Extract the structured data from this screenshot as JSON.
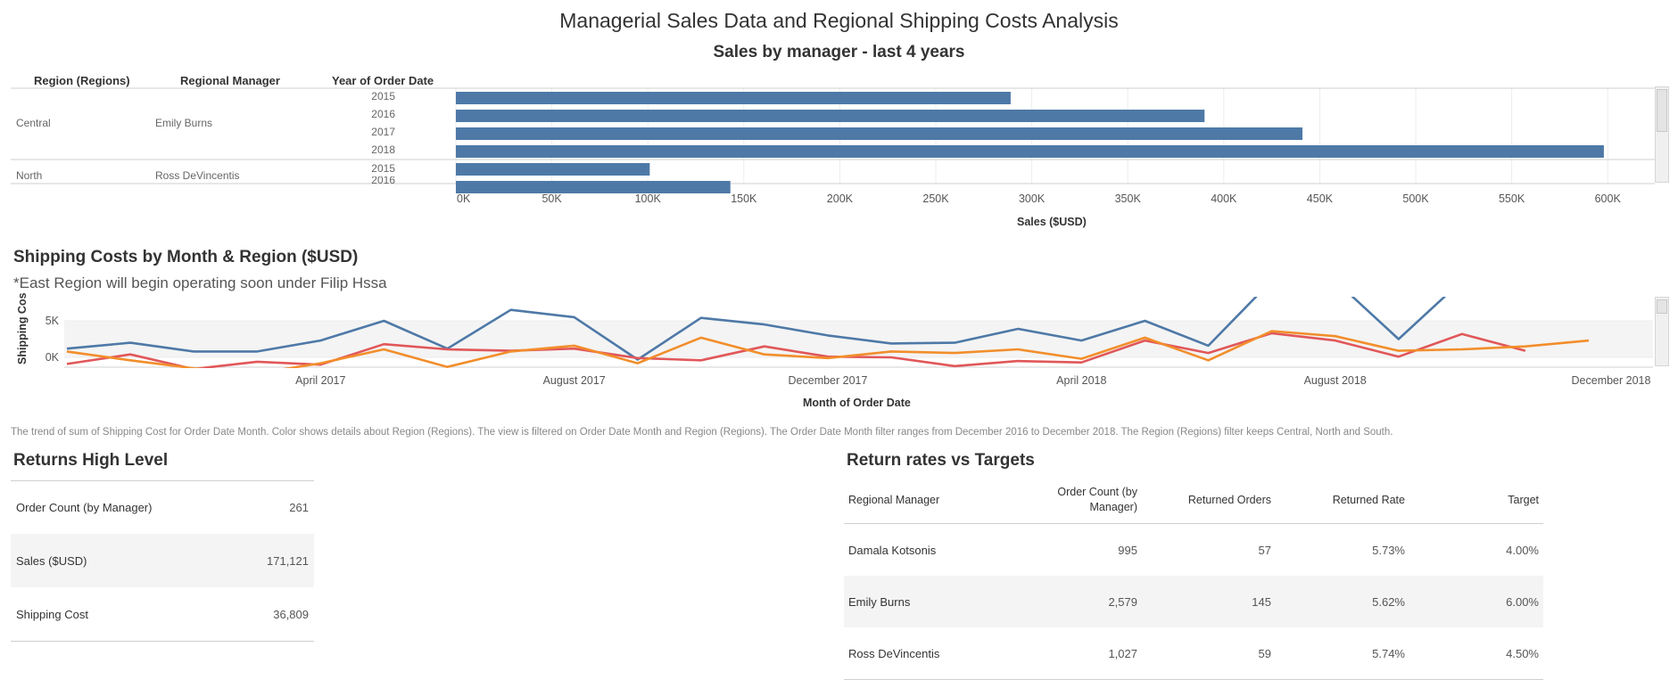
{
  "dashboard_title": "Managerial Sales Data and Regional Shipping Costs Analysis",
  "colors": {
    "bar": "#4e79a7",
    "central": "#4e79a7",
    "north": "#e15759",
    "south": "#f28e2b",
    "grid": "#ececec",
    "band": "#f4f4f4"
  },
  "bar_chart": {
    "headers": {
      "region": "Region (Regions)",
      "manager": "Regional Manager",
      "year": "Year of Order Date"
    },
    "groups": [
      {
        "region": "Central",
        "manager": "Emily Burns",
        "years": [
          "2015",
          "2016",
          "2017",
          "2018"
        ]
      },
      {
        "region": "North",
        "manager": "Ross DeVincentis",
        "years": [
          "2015",
          "2016"
        ]
      }
    ],
    "x_ticks": [
      "0K",
      "50K",
      "100K",
      "150K",
      "200K",
      "250K",
      "300K",
      "350K",
      "400K",
      "450K",
      "500K",
      "550K",
      "600K"
    ]
  },
  "line_chart": {
    "title": "Shipping Costs by Month & Region ($USD)",
    "note": "*East Region will begin operating soon under Filip Hssa",
    "ylabel": "Shipping Cos",
    "xlabel": "Month of Order Date",
    "y_ticks": [
      "5K",
      "0K"
    ],
    "x_ticks": [
      "April 2017",
      "August 2017",
      "December 2017",
      "April 2018",
      "August 2018",
      "December 2018"
    ],
    "caption": "The trend of sum of Shipping Cost for Order Date Month.  Color shows details about Region (Regions). The view is filtered on Order Date Month and Region (Regions). The Order Date Month filter ranges from December 2016 to December 2018. The Region (Regions) filter keeps Central, North and South."
  },
  "chart_data": [
    {
      "type": "bar",
      "title": "Sales by manager - last 4 years",
      "xlabel": "Sales ($USD)",
      "categories": [
        "Central | Emily Burns | 2015",
        "Central | Emily Burns | 2016",
        "Central | Emily Burns | 2017",
        "Central | Emily Burns | 2018",
        "North | Ross DeVincentis | 2015",
        "North | Ross DeVincentis | 2016"
      ],
      "values": [
        289000,
        390000,
        441000,
        598000,
        101000,
        143000
      ],
      "xlim": [
        0,
        630000
      ],
      "grid": true
    },
    {
      "type": "line",
      "title": "Shipping Costs by Month & Region ($USD)",
      "xlabel": "Month of Order Date",
      "ylabel": "Shipping Cos",
      "x": [
        "2016-12",
        "2017-01",
        "2017-02",
        "2017-03",
        "2017-04",
        "2017-05",
        "2017-06",
        "2017-07",
        "2017-08",
        "2017-09",
        "2017-10",
        "2017-11",
        "2017-12",
        "2018-01",
        "2018-02",
        "2018-03",
        "2018-04",
        "2018-05",
        "2018-06",
        "2018-07",
        "2018-08",
        "2018-09",
        "2018-10",
        "2018-11",
        "2018-12"
      ],
      "series": [
        {
          "name": "Central",
          "color": "#4e79a7",
          "values": [
            1200,
            2000,
            800,
            800,
            2300,
            5000,
            1200,
            6500,
            5500,
            -300,
            5400,
            4500,
            3000,
            1900,
            2000,
            3900,
            2300,
            5000,
            1600,
            10500,
            10500,
            2500,
            10500,
            null,
            null
          ]
        },
        {
          "name": "North",
          "color": "#e15759",
          "values": [
            -900,
            400,
            -1600,
            -600,
            -1000,
            1800,
            1100,
            900,
            1200,
            -100,
            -400,
            1500,
            100,
            0,
            -1200,
            -500,
            -700,
            2300,
            600,
            3300,
            2300,
            100,
            3200,
            900,
            null
          ]
        },
        {
          "name": "South",
          "color": "#f28e2b",
          "values": [
            800,
            -400,
            -1500,
            -2200,
            -800,
            1100,
            -1300,
            800,
            1600,
            -800,
            2700,
            400,
            -100,
            800,
            600,
            1100,
            -200,
            2700,
            -400,
            3600,
            2900,
            900,
            1100,
            1500,
            2300
          ]
        }
      ],
      "ylim": [
        -4000,
        10000
      ],
      "grid": true
    }
  ],
  "returns_high_level": {
    "title": "Returns High Level",
    "rows": [
      {
        "label": "Order Count (by Manager)",
        "value": "261"
      },
      {
        "label": "Sales ($USD)",
        "value": "171,121"
      },
      {
        "label": "Shipping Cost",
        "value": "36,809"
      }
    ]
  },
  "return_rates": {
    "title": "Return rates vs Targets",
    "headers": [
      "Regional Manager",
      "Order Count (by Manager)",
      "Returned Orders",
      "Returned Rate",
      "Target"
    ],
    "rows": [
      [
        "Damala Kotsonis",
        "995",
        "57",
        "5.73%",
        "4.00%"
      ],
      [
        "Emily Burns",
        "2,579",
        "145",
        "5.62%",
        "6.00%"
      ],
      [
        "Ross DeVincentis",
        "1,027",
        "59",
        "5.74%",
        "4.50%"
      ]
    ]
  }
}
